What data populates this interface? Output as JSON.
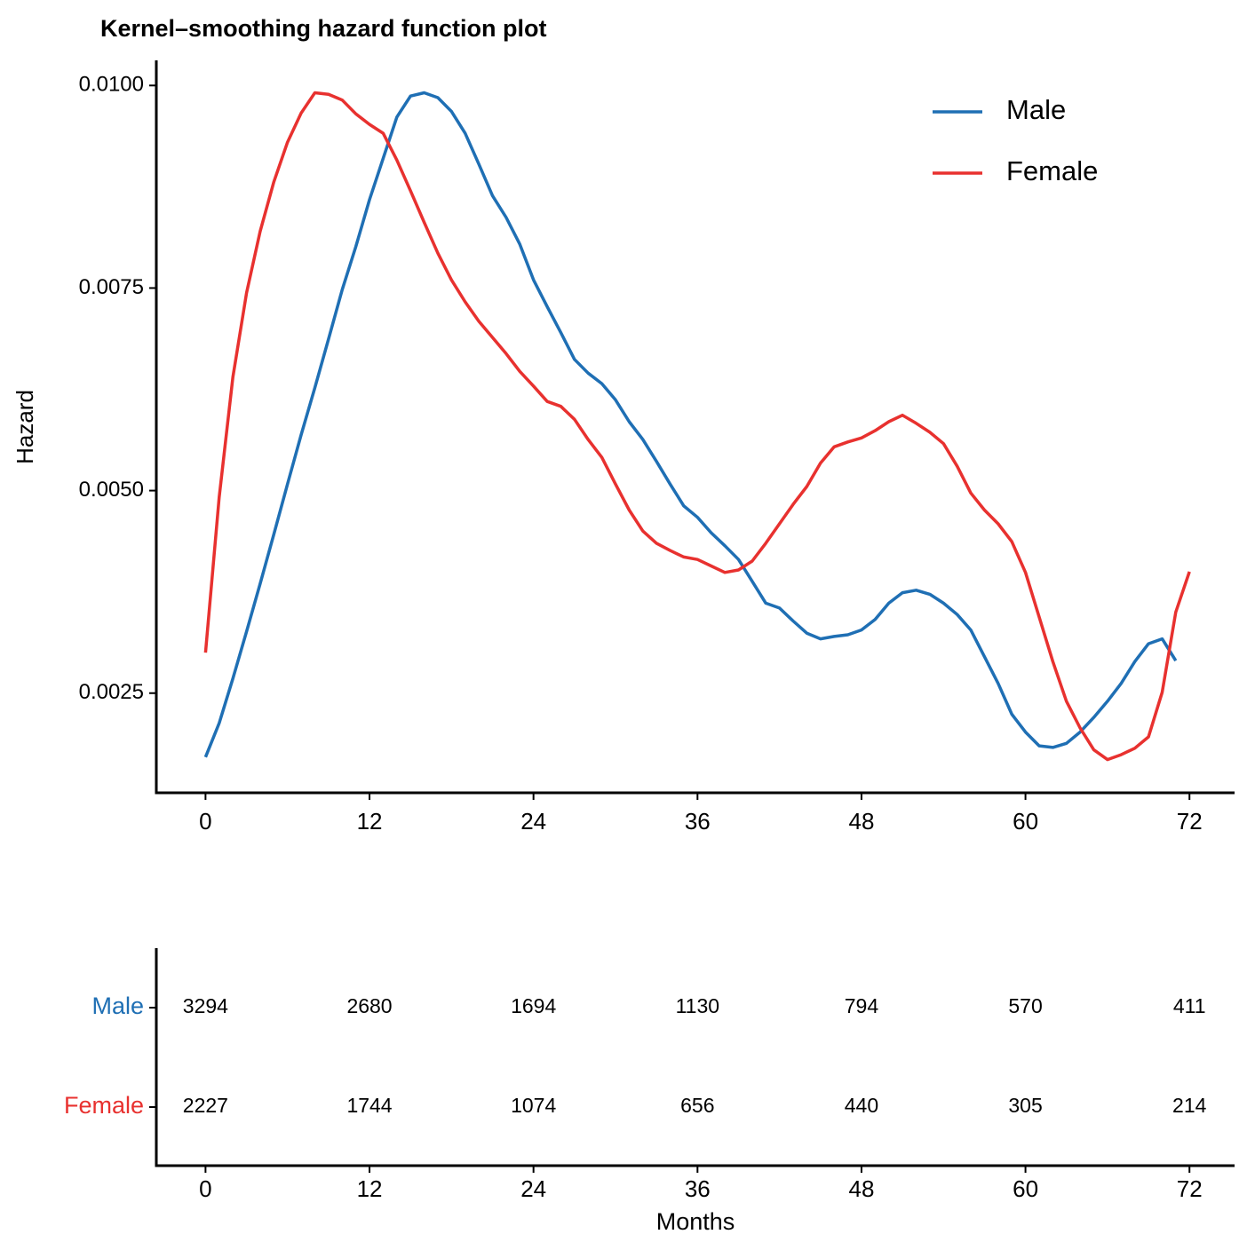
{
  "chart_data": [
    {
      "type": "line",
      "title": "Kernel–smoothing hazard function plot",
      "ylabel": "Hazard",
      "x": [
        0,
        1,
        2,
        3,
        4,
        5,
        6,
        7,
        8,
        9,
        10,
        11,
        12,
        13,
        14,
        15,
        16,
        17,
        18,
        19,
        20,
        21,
        22,
        23,
        24,
        25,
        26,
        27,
        28,
        29,
        30,
        31,
        32,
        33,
        34,
        35,
        36,
        37,
        38,
        39,
        40,
        41,
        42,
        43,
        44,
        45,
        46,
        47,
        48,
        49,
        50,
        51,
        52,
        53,
        54,
        55,
        56,
        57,
        58,
        59,
        60,
        61,
        62,
        63,
        64,
        65,
        66,
        67,
        68,
        69,
        70,
        71,
        72
      ],
      "series": [
        {
          "name": "Male",
          "color": "#1f6fb4",
          "values": [
            0.00171,
            0.00213,
            0.00268,
            0.00326,
            0.00385,
            0.00446,
            0.00508,
            0.00569,
            0.00627,
            0.00687,
            0.00748,
            0.00801,
            0.00859,
            0.0091,
            0.00961,
            0.00987,
            0.00991,
            0.00985,
            0.00968,
            0.00941,
            0.00903,
            0.00864,
            0.00837,
            0.00804,
            0.0076,
            0.00727,
            0.00695,
            0.00662,
            0.00645,
            0.00632,
            0.00612,
            0.00585,
            0.00563,
            0.00536,
            0.00508,
            0.00481,
            0.00467,
            0.00448,
            0.00432,
            0.00415,
            0.00388,
            0.00361,
            0.00355,
            0.00339,
            0.00324,
            0.00317,
            0.0032,
            0.00322,
            0.00328,
            0.00341,
            0.00361,
            0.00374,
            0.00377,
            0.00372,
            0.00361,
            0.00347,
            0.00328,
            0.00295,
            0.00262,
            0.00224,
            0.00202,
            0.00185,
            0.00183,
            0.00188,
            0.00202,
            0.0022,
            0.0024,
            0.00262,
            0.00289,
            0.00311,
            0.00317,
            0.0029,
            null
          ]
        },
        {
          "name": "Female",
          "color": "#e8312f",
          "values": [
            0.003,
            0.00492,
            0.0064,
            0.00744,
            0.0082,
            0.00881,
            0.0093,
            0.00966,
            0.00991,
            0.00989,
            0.00982,
            0.00965,
            0.00952,
            0.00941,
            0.00908,
            0.0087,
            0.00831,
            0.00793,
            0.0076,
            0.00733,
            0.00709,
            0.00689,
            0.00669,
            0.00647,
            0.00629,
            0.0061,
            0.00604,
            0.00588,
            0.00563,
            0.00541,
            0.00508,
            0.00476,
            0.0045,
            0.00435,
            0.00426,
            0.00418,
            0.00415,
            0.00407,
            0.00399,
            0.00402,
            0.00413,
            0.00435,
            0.00459,
            0.00483,
            0.00505,
            0.00534,
            0.00554,
            0.0056,
            0.00565,
            0.00574,
            0.00585,
            0.00593,
            0.00583,
            0.00572,
            0.00558,
            0.0053,
            0.00497,
            0.00476,
            0.00459,
            0.00437,
            0.00399,
            0.00344,
            0.00289,
            0.0024,
            0.00207,
            0.0018,
            0.00168,
            0.00174,
            0.00182,
            0.00196,
            0.00251,
            0.0035,
            0.004
          ]
        }
      ],
      "xlim": [
        -3.6,
        75.3
      ],
      "xticks": [
        0,
        12,
        24,
        36,
        48,
        60,
        72
      ],
      "ylim": [
        0.00127,
        0.01031
      ],
      "yticks": [
        0.0025,
        {
          "value": 0.005,
          "label": "0.0050"
        },
        0.0075,
        {
          "value": 0.01,
          "label": "0.0100"
        }
      ],
      "legend": "top-right",
      "grid": false
    },
    {
      "type": "table",
      "xlabel": "Months",
      "x": [
        0,
        12,
        24,
        36,
        48,
        60,
        72
      ],
      "series": [
        {
          "name": "Male",
          "color": "#1f6fb4",
          "values": [
            3294,
            2680,
            1694,
            1130,
            794,
            570,
            411
          ]
        },
        {
          "name": "Female",
          "color": "#e8312f",
          "values": [
            2227,
            1744,
            1074,
            656,
            440,
            305,
            214
          ]
        }
      ],
      "xlim": [
        -3.6,
        75.3
      ],
      "xticks": [
        0,
        12,
        24,
        36,
        48,
        60,
        72
      ]
    }
  ]
}
